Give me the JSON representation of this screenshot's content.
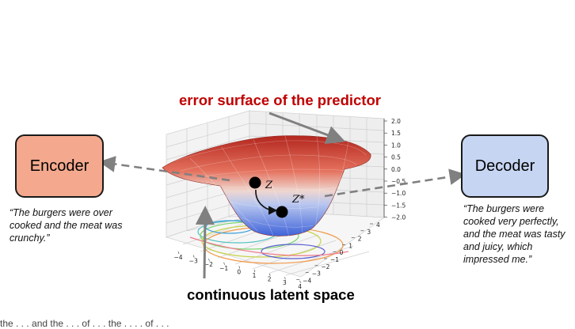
{
  "encoder": {
    "label": "Encoder",
    "fill": "#f4a98e",
    "quote": "“The burgers were over cooked and the meat was crunchy.”"
  },
  "decoder": {
    "label": "Decoder",
    "fill": "#c6d5f2",
    "quote": "“The burgers were cooked very perfectly, and the meat was tasty and juicy, which impressed me.”"
  },
  "title_top": "error surface of the predictor",
  "title_bottom": "continuous latent space",
  "bottom_partial": "the . . . and the . . . of . . . the . . . . of . . .",
  "points": {
    "z": "Z",
    "z_star": "Z*"
  },
  "z_ticks": [
    "2.0",
    "1.5",
    "1.0",
    "0.5",
    "0.0",
    "−0.5",
    "−1.0",
    "−1.5",
    "−2.0"
  ],
  "x_ticks": [
    "−4",
    "−3",
    "−2",
    "−1",
    "0",
    "1",
    "2",
    "3",
    "4"
  ],
  "y_ticks": [
    "4",
    "3",
    "2",
    "1",
    "0",
    "−1",
    "−2",
    "−3",
    "−4"
  ],
  "colors": {
    "title_red": "#c00000",
    "arrow_gray": "#808080",
    "surface_high": "#c0302f",
    "surface_low": "#4b6fe0"
  }
}
